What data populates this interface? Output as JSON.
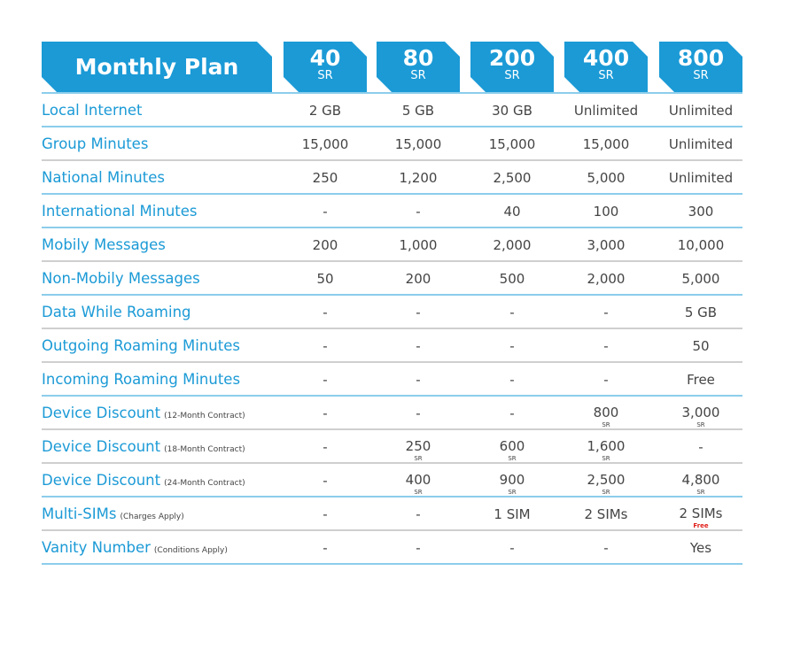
{
  "header": {
    "title": "Monthly Plan",
    "plans": [
      {
        "price": "40",
        "currency": "SR"
      },
      {
        "price": "80",
        "currency": "SR"
      },
      {
        "price": "200",
        "currency": "SR"
      },
      {
        "price": "400",
        "currency": "SR"
      },
      {
        "price": "800",
        "currency": "SR"
      }
    ]
  },
  "colors": {
    "accent": "#1b9ad6",
    "divider_blue": "#8ccdeb",
    "divider_gray": "#cfcfcf",
    "free": "#e0201b"
  },
  "rows": [
    {
      "label": "Local Internet",
      "note": "",
      "divider": "blue",
      "values": [
        {
          "v": "2 GB"
        },
        {
          "v": "5 GB"
        },
        {
          "v": "30 GB"
        },
        {
          "v": "Unlimited"
        },
        {
          "v": "Unlimited"
        }
      ]
    },
    {
      "label": "Group Minutes",
      "note": "",
      "divider": "gray",
      "values": [
        {
          "v": "15,000"
        },
        {
          "v": "15,000"
        },
        {
          "v": "15,000"
        },
        {
          "v": "15,000"
        },
        {
          "v": "Unlimited"
        }
      ]
    },
    {
      "label": "National Minutes",
      "note": "",
      "divider": "blue",
      "values": [
        {
          "v": "250"
        },
        {
          "v": "1,200"
        },
        {
          "v": "2,500"
        },
        {
          "v": "5,000"
        },
        {
          "v": "Unlimited"
        }
      ]
    },
    {
      "label": "International Minutes",
      "note": "",
      "divider": "blue",
      "values": [
        {
          "v": "-"
        },
        {
          "v": "-"
        },
        {
          "v": "40"
        },
        {
          "v": "100"
        },
        {
          "v": "300"
        }
      ]
    },
    {
      "label": "Mobily Messages",
      "note": "",
      "divider": "gray",
      "values": [
        {
          "v": "200"
        },
        {
          "v": "1,000"
        },
        {
          "v": "2,000"
        },
        {
          "v": "3,000"
        },
        {
          "v": "10,000"
        }
      ]
    },
    {
      "label": "Non-Mobily Messages",
      "note": "",
      "divider": "blue",
      "values": [
        {
          "v": "50"
        },
        {
          "v": "200"
        },
        {
          "v": "500"
        },
        {
          "v": "2,000"
        },
        {
          "v": "5,000"
        }
      ]
    },
    {
      "label": "Data While Roaming",
      "note": "",
      "divider": "gray",
      "values": [
        {
          "v": "-"
        },
        {
          "v": "-"
        },
        {
          "v": "-"
        },
        {
          "v": "-"
        },
        {
          "v": "5 GB"
        }
      ]
    },
    {
      "label": "Outgoing Roaming Minutes",
      "note": "",
      "divider": "gray",
      "values": [
        {
          "v": "-"
        },
        {
          "v": "-"
        },
        {
          "v": "-"
        },
        {
          "v": "-"
        },
        {
          "v": "50"
        }
      ]
    },
    {
      "label": "Incoming Roaming Minutes",
      "note": "",
      "divider": "blue",
      "values": [
        {
          "v": "-"
        },
        {
          "v": "-"
        },
        {
          "v": "-"
        },
        {
          "v": "-"
        },
        {
          "v": "Free"
        }
      ]
    },
    {
      "label": "Device Discount",
      "note": "(12-Month Contract)",
      "divider": "gray",
      "values": [
        {
          "v": "-"
        },
        {
          "v": "-"
        },
        {
          "v": "-"
        },
        {
          "v": "800",
          "s": "SR"
        },
        {
          "v": "3,000",
          "s": "SR"
        }
      ]
    },
    {
      "label": "Device Discount",
      "note": "(18-Month Contract)",
      "divider": "gray",
      "values": [
        {
          "v": "-"
        },
        {
          "v": "250",
          "s": "SR"
        },
        {
          "v": "600",
          "s": "SR"
        },
        {
          "v": "1,600",
          "s": "SR"
        },
        {
          "v": "-"
        }
      ]
    },
    {
      "label": "Device Discount",
      "note": "(24-Month Contract)",
      "divider": "blue",
      "values": [
        {
          "v": "-"
        },
        {
          "v": "400",
          "s": "SR"
        },
        {
          "v": "900",
          "s": "SR"
        },
        {
          "v": "2,500",
          "s": "SR"
        },
        {
          "v": "4,800",
          "s": "SR"
        }
      ]
    },
    {
      "label": "Multi-SIMs",
      "note": "(Charges Apply)",
      "divider": "gray",
      "values": [
        {
          "v": "-"
        },
        {
          "v": "-"
        },
        {
          "v": "1 SIM"
        },
        {
          "v": "2 SIMs"
        },
        {
          "v": "2 SIMs",
          "s": "Free",
          "red": true
        }
      ]
    },
    {
      "label": "Vanity Number",
      "note": "(Conditions Apply)",
      "divider": "blue",
      "values": [
        {
          "v": "-"
        },
        {
          "v": "-"
        },
        {
          "v": "-"
        },
        {
          "v": "-"
        },
        {
          "v": "Yes"
        }
      ]
    }
  ]
}
